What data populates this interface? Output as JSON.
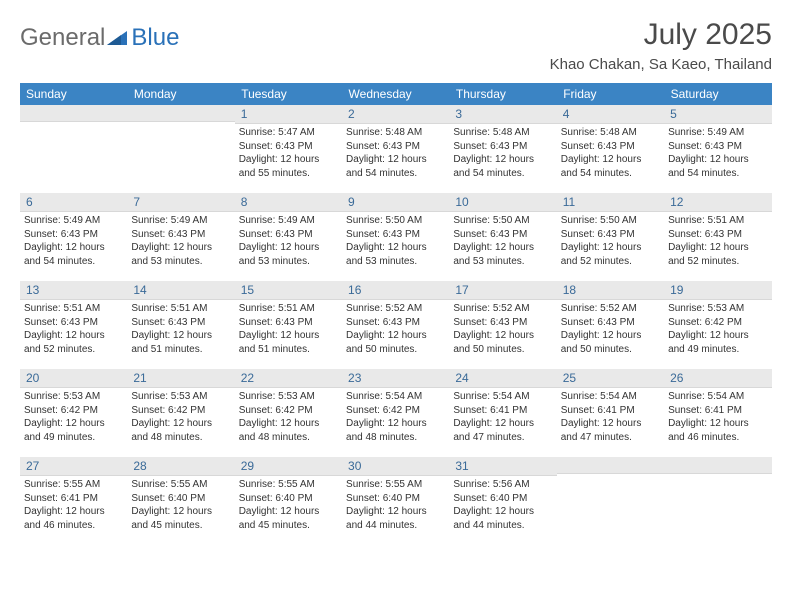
{
  "brand": {
    "part1": "General",
    "part2": "Blue"
  },
  "title": "July 2025",
  "location": "Khao Chakan, Sa Kaeo, Thailand",
  "colors": {
    "header_bg": "#3b84c4",
    "header_text": "#ffffff",
    "daynum_bg": "#e9e9e9",
    "daynum_text": "#3a6a98",
    "body_text": "#333333",
    "brand_gray": "#6b6b6b",
    "brand_blue": "#2a71b8"
  },
  "weekday_labels": [
    "Sunday",
    "Monday",
    "Tuesday",
    "Wednesday",
    "Thursday",
    "Friday",
    "Saturday"
  ],
  "weeks": [
    [
      null,
      null,
      {
        "n": "1",
        "sr": "5:47 AM",
        "ss": "6:43 PM",
        "dl": "12 hours and 55 minutes."
      },
      {
        "n": "2",
        "sr": "5:48 AM",
        "ss": "6:43 PM",
        "dl": "12 hours and 54 minutes."
      },
      {
        "n": "3",
        "sr": "5:48 AM",
        "ss": "6:43 PM",
        "dl": "12 hours and 54 minutes."
      },
      {
        "n": "4",
        "sr": "5:48 AM",
        "ss": "6:43 PM",
        "dl": "12 hours and 54 minutes."
      },
      {
        "n": "5",
        "sr": "5:49 AM",
        "ss": "6:43 PM",
        "dl": "12 hours and 54 minutes."
      }
    ],
    [
      {
        "n": "6",
        "sr": "5:49 AM",
        "ss": "6:43 PM",
        "dl": "12 hours and 54 minutes."
      },
      {
        "n": "7",
        "sr": "5:49 AM",
        "ss": "6:43 PM",
        "dl": "12 hours and 53 minutes."
      },
      {
        "n": "8",
        "sr": "5:49 AM",
        "ss": "6:43 PM",
        "dl": "12 hours and 53 minutes."
      },
      {
        "n": "9",
        "sr": "5:50 AM",
        "ss": "6:43 PM",
        "dl": "12 hours and 53 minutes."
      },
      {
        "n": "10",
        "sr": "5:50 AM",
        "ss": "6:43 PM",
        "dl": "12 hours and 53 minutes."
      },
      {
        "n": "11",
        "sr": "5:50 AM",
        "ss": "6:43 PM",
        "dl": "12 hours and 52 minutes."
      },
      {
        "n": "12",
        "sr": "5:51 AM",
        "ss": "6:43 PM",
        "dl": "12 hours and 52 minutes."
      }
    ],
    [
      {
        "n": "13",
        "sr": "5:51 AM",
        "ss": "6:43 PM",
        "dl": "12 hours and 52 minutes."
      },
      {
        "n": "14",
        "sr": "5:51 AM",
        "ss": "6:43 PM",
        "dl": "12 hours and 51 minutes."
      },
      {
        "n": "15",
        "sr": "5:51 AM",
        "ss": "6:43 PM",
        "dl": "12 hours and 51 minutes."
      },
      {
        "n": "16",
        "sr": "5:52 AM",
        "ss": "6:43 PM",
        "dl": "12 hours and 50 minutes."
      },
      {
        "n": "17",
        "sr": "5:52 AM",
        "ss": "6:43 PM",
        "dl": "12 hours and 50 minutes."
      },
      {
        "n": "18",
        "sr": "5:52 AM",
        "ss": "6:43 PM",
        "dl": "12 hours and 50 minutes."
      },
      {
        "n": "19",
        "sr": "5:53 AM",
        "ss": "6:42 PM",
        "dl": "12 hours and 49 minutes."
      }
    ],
    [
      {
        "n": "20",
        "sr": "5:53 AM",
        "ss": "6:42 PM",
        "dl": "12 hours and 49 minutes."
      },
      {
        "n": "21",
        "sr": "5:53 AM",
        "ss": "6:42 PM",
        "dl": "12 hours and 48 minutes."
      },
      {
        "n": "22",
        "sr": "5:53 AM",
        "ss": "6:42 PM",
        "dl": "12 hours and 48 minutes."
      },
      {
        "n": "23",
        "sr": "5:54 AM",
        "ss": "6:42 PM",
        "dl": "12 hours and 48 minutes."
      },
      {
        "n": "24",
        "sr": "5:54 AM",
        "ss": "6:41 PM",
        "dl": "12 hours and 47 minutes."
      },
      {
        "n": "25",
        "sr": "5:54 AM",
        "ss": "6:41 PM",
        "dl": "12 hours and 47 minutes."
      },
      {
        "n": "26",
        "sr": "5:54 AM",
        "ss": "6:41 PM",
        "dl": "12 hours and 46 minutes."
      }
    ],
    [
      {
        "n": "27",
        "sr": "5:55 AM",
        "ss": "6:41 PM",
        "dl": "12 hours and 46 minutes."
      },
      {
        "n": "28",
        "sr": "5:55 AM",
        "ss": "6:40 PM",
        "dl": "12 hours and 45 minutes."
      },
      {
        "n": "29",
        "sr": "5:55 AM",
        "ss": "6:40 PM",
        "dl": "12 hours and 45 minutes."
      },
      {
        "n": "30",
        "sr": "5:55 AM",
        "ss": "6:40 PM",
        "dl": "12 hours and 44 minutes."
      },
      {
        "n": "31",
        "sr": "5:56 AM",
        "ss": "6:40 PM",
        "dl": "12 hours and 44 minutes."
      },
      null,
      null
    ]
  ],
  "labels": {
    "sunrise": "Sunrise:",
    "sunset": "Sunset:",
    "daylight": "Daylight:"
  }
}
